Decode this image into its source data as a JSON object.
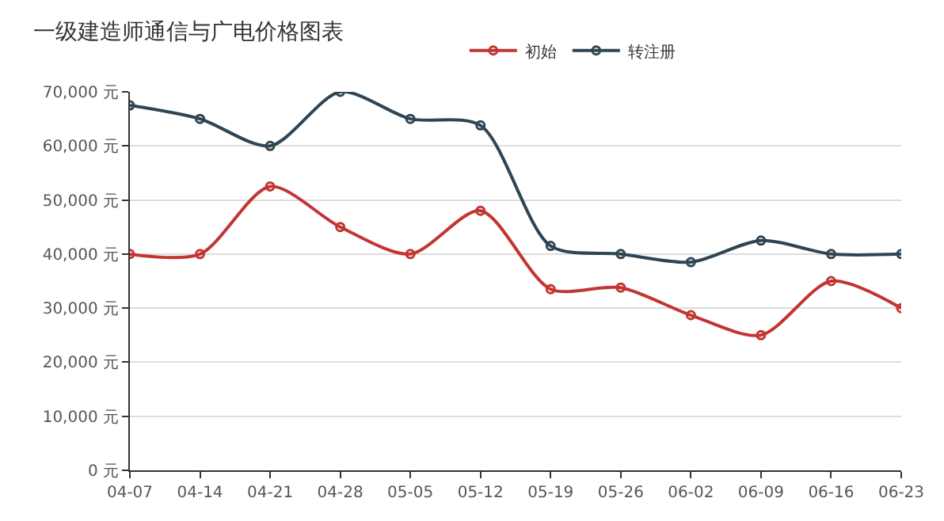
{
  "chart_data": {
    "type": "line",
    "title": "一级建造师通信与广电价格图表",
    "categories": [
      "04-07",
      "04-14",
      "04-21",
      "04-28",
      "05-05",
      "05-12",
      "05-19",
      "05-26",
      "06-02",
      "06-09",
      "06-16",
      "06-23"
    ],
    "series": [
      {
        "name": "初始",
        "color": "#c23531",
        "values": [
          40000,
          40000,
          52500,
          45000,
          40000,
          48000,
          33500,
          33800,
          28700,
          25000,
          35000,
          30000
        ]
      },
      {
        "name": "转注册",
        "color": "#2f4554",
        "values": [
          67500,
          65000,
          60000,
          70000,
          65000,
          63800,
          41500,
          40000,
          38500,
          42500,
          40000,
          40000
        ]
      }
    ],
    "ylim": [
      0,
      70000
    ],
    "yticks": [
      {
        "value": 0,
        "label": "0 元"
      },
      {
        "value": 10000,
        "label": "10,000 元"
      },
      {
        "value": 20000,
        "label": "20,000 元"
      },
      {
        "value": 30000,
        "label": "30,000 元"
      },
      {
        "value": 40000,
        "label": "40,000 元"
      },
      {
        "value": 50000,
        "label": "50,000 元"
      },
      {
        "value": 60000,
        "label": "60,000 元"
      },
      {
        "value": 70000,
        "label": "70,000 元"
      }
    ],
    "grid": "y",
    "legend": "top",
    "marker": "circle",
    "line_style": "solid"
  }
}
